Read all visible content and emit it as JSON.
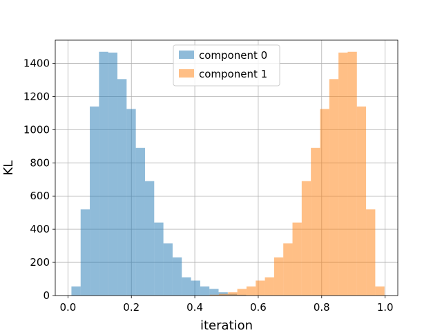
{
  "chart_data": {
    "type": "bar",
    "title": "",
    "xlabel": "iteration",
    "ylabel": "KL",
    "xlim": [
      -0.04,
      1.04
    ],
    "ylim": [
      0,
      1540
    ],
    "xticks": [
      "0.0",
      "0.2",
      "0.4",
      "0.6",
      "0.8",
      "1.0"
    ],
    "xtick_values": [
      0.0,
      0.2,
      0.4,
      0.6,
      0.8,
      1.0
    ],
    "yticks": [
      "0",
      "200",
      "400",
      "600",
      "800",
      "1000",
      "1200",
      "1400"
    ],
    "ytick_values": [
      0,
      200,
      400,
      600,
      800,
      1000,
      1200,
      1400
    ],
    "grid": true,
    "legend_position": "top-center",
    "bin_width": 0.029,
    "series": [
      {
        "name": "component 0",
        "color": "#1f77b4",
        "opacity": 0.5,
        "bin_starts": [
          0.011,
          0.04,
          0.069,
          0.098,
          0.127,
          0.156,
          0.185,
          0.214,
          0.243,
          0.272,
          0.301,
          0.33,
          0.359,
          0.388,
          0.417,
          0.446,
          0.475,
          0.504,
          0.533
        ],
        "values": [
          55,
          520,
          1140,
          1470,
          1465,
          1305,
          1125,
          890,
          690,
          440,
          315,
          230,
          110,
          90,
          55,
          40,
          20,
          10,
          5
        ]
      },
      {
        "name": "component 1",
        "color": "#ff7f0e",
        "opacity": 0.5,
        "bin_starts": [
          0.447,
          0.476,
          0.505,
          0.534,
          0.563,
          0.592,
          0.621,
          0.65,
          0.679,
          0.708,
          0.737,
          0.766,
          0.795,
          0.824,
          0.853,
          0.882,
          0.911,
          0.94,
          0.969
        ],
        "values": [
          5,
          10,
          20,
          40,
          55,
          90,
          110,
          230,
          315,
          440,
          690,
          890,
          1125,
          1305,
          1465,
          1470,
          1140,
          520,
          55
        ]
      }
    ]
  }
}
